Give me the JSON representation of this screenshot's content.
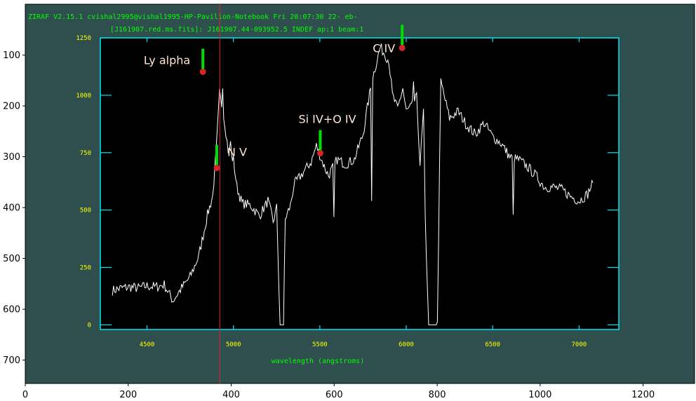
{
  "header": {
    "line1": "ZIRAF V2.15.1 cvishal2995@vishal1995-HP-Pavilion-Notebook Fri 20:07:30 22- eb-",
    "line2": "[J161907.red.ms.fits]: J161907.44-093952.5 INDEF ap:1 beam:1"
  },
  "colors": {
    "outer_bg": "#2f4f4f",
    "plot_bg": "#000000",
    "frame": "#00e5ee",
    "inner_tick_text": "#ffff00",
    "header_text": "#00ff00",
    "spectrum": "#ffffff",
    "marker_bar": "#00dd00",
    "marker_dot": "#d62728",
    "cursor_line": "#d62728",
    "label_text": "#ffe6d5"
  },
  "chart_data": [
    {
      "type": "line",
      "title": "",
      "xlabel": "wavelength (angstroms)",
      "ylabel": "",
      "xlim": [
        4230,
        7230
      ],
      "ylim": [
        -20,
        1250
      ],
      "x_ticks": [
        "4500",
        "5000",
        "5500",
        "6000",
        "6500",
        "7000"
      ],
      "y_ticks": [
        "0",
        "250",
        "500",
        "750",
        "1000",
        "1250"
      ],
      "series": [
        {
          "x": [
            4300,
            4350,
            4400,
            4450,
            4500,
            4550,
            4600,
            4650,
            4700,
            4750,
            4800,
            4850,
            4880,
            4900,
            4920,
            4950,
            4970,
            4990,
            5000,
            5020,
            5050,
            5100,
            5150,
            5200,
            5230,
            5250,
            5270,
            5290,
            5300,
            5330,
            5350,
            5380,
            5400,
            5450,
            5480,
            5500,
            5520,
            5550,
            5600,
            5650,
            5700,
            5750,
            5800,
            5850,
            5900,
            5920,
            5950,
            5980,
            6000,
            6030,
            6060,
            6080,
            6100,
            6110,
            6130,
            6150,
            6180,
            6200,
            6250,
            6300,
            6350,
            6400,
            6450,
            6500,
            6550,
            6600,
            6650,
            6700,
            6750,
            6800,
            6850,
            6900,
            6950,
            7000,
            7050,
            7080
          ],
          "y": [
            150,
            160,
            165,
            160,
            170,
            165,
            175,
            105,
            160,
            210,
            300,
            480,
            560,
            750,
            1010,
            880,
            760,
            730,
            720,
            600,
            530,
            520,
            475,
            540,
            450,
            510,
            0,
            0,
            460,
            520,
            610,
            640,
            660,
            710,
            780,
            740,
            700,
            650,
            720,
            700,
            720,
            830,
            1060,
            1210,
            1150,
            1000,
            940,
            1030,
            930,
            950,
            990,
            700,
            930,
            460,
            0,
            0,
            0,
            1060,
            900,
            930,
            870,
            830,
            880,
            820,
            790,
            730,
            720,
            690,
            650,
            600,
            600,
            590,
            560,
            540,
            570,
            620
          ],
          "spikes": [
            {
              "x": 4940,
              "y": 1030
            },
            {
              "x": 4985,
              "y": 800
            },
            {
              "x": 5580,
              "y": 470
            },
            {
              "x": 5800,
              "y": 540
            },
            {
              "x": 6040,
              "y": 1060
            },
            {
              "x": 6620,
              "y": 480
            }
          ]
        }
      ]
    },
    {
      "type": "line",
      "title": "",
      "xlabel": "",
      "ylabel": "",
      "xlim": [
        0,
        1300
      ],
      "ylim": [
        746,
        0
      ],
      "x_ticks": [
        "0",
        "200",
        "400",
        "600",
        "800",
        "1000",
        "1200"
      ],
      "y_ticks": [
        "100",
        "200",
        "300",
        "400",
        "500",
        "600",
        "700"
      ],
      "annotations": [
        {
          "label": "Ly alpha",
          "x": 345,
          "y": 133
        },
        {
          "label": "N V",
          "x": 372,
          "y": 322
        },
        {
          "label": "Si IV+O IV",
          "x": 573,
          "y": 293
        },
        {
          "label": "C IV",
          "x": 732,
          "y": 86
        }
      ],
      "cursor_x": 378
    }
  ]
}
